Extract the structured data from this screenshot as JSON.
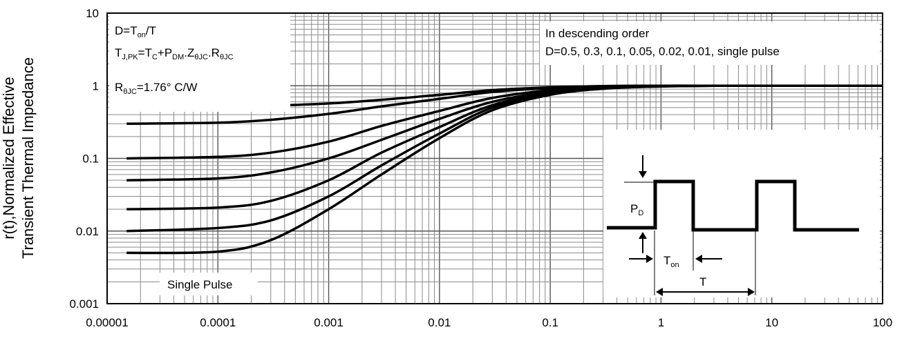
{
  "chart_data": {
    "type": "line",
    "title": "",
    "xlabel": "",
    "ylabel_lines": [
      "r(t),Normalized Effective",
      "Transient Thermal Impedance"
    ],
    "x_scale": "log",
    "y_scale": "log",
    "xlim": [
      1e-05,
      100
    ],
    "ylim": [
      0.001,
      10
    ],
    "x_ticks": [
      {
        "value": 1e-05,
        "label": "0.00001"
      },
      {
        "value": 0.0001,
        "label": "0.0001"
      },
      {
        "value": 0.001,
        "label": "0.001"
      },
      {
        "value": 0.01,
        "label": "0.01"
      },
      {
        "value": 0.1,
        "label": "0.1"
      },
      {
        "value": 1,
        "label": "1"
      },
      {
        "value": 10,
        "label": "10"
      },
      {
        "value": 100,
        "label": "100"
      }
    ],
    "y_ticks": [
      {
        "value": 10,
        "label": "10"
      },
      {
        "value": 1,
        "label": "1"
      },
      {
        "value": 0.1,
        "label": "0.1"
      },
      {
        "value": 0.01,
        "label": "0.01"
      },
      {
        "value": 0.001,
        "label": "0.001"
      }
    ],
    "grid": true,
    "x": [
      1.5e-05,
      0.0001,
      0.0003,
      0.001,
      0.003,
      0.01,
      0.03,
      0.1,
      0.3,
      1,
      3,
      10,
      100
    ],
    "series": [
      {
        "values": [
          0.5,
          0.51,
          0.53,
          0.57,
          0.64,
          0.75,
          0.87,
          0.95,
          0.99,
          1,
          1,
          1,
          1
        ]
      },
      {
        "values": [
          0.3,
          0.31,
          0.34,
          0.41,
          0.52,
          0.66,
          0.82,
          0.93,
          0.98,
          1,
          1,
          1,
          1
        ]
      },
      {
        "values": [
          0.1,
          0.105,
          0.12,
          0.17,
          0.28,
          0.45,
          0.68,
          0.87,
          0.96,
          1,
          1,
          1,
          1
        ]
      },
      {
        "values": [
          0.05,
          0.053,
          0.064,
          0.1,
          0.18,
          0.35,
          0.6,
          0.83,
          0.95,
          0.99,
          1,
          1,
          1
        ]
      },
      {
        "values": [
          0.02,
          0.021,
          0.026,
          0.05,
          0.12,
          0.27,
          0.54,
          0.8,
          0.93,
          0.98,
          1,
          1,
          1
        ]
      },
      {
        "values": [
          0.01,
          0.011,
          0.014,
          0.03,
          0.08,
          0.22,
          0.5,
          0.77,
          0.92,
          0.98,
          1,
          1,
          1
        ]
      },
      {
        "values": [
          0.005,
          0.0052,
          0.0075,
          0.02,
          0.06,
          0.19,
          0.46,
          0.75,
          0.91,
          0.98,
          1,
          1,
          1
        ]
      }
    ],
    "annotations": {
      "formula": {
        "d_main": "D=T",
        "d_sub": "on",
        "d_rest": "/T",
        "t_main": "T",
        "t_sub": "J,PK",
        "t_eq": "=T",
        "tc_sub": "C",
        "plus": "+P",
        "pdm_sub": "DM",
        "dot1": ".Z",
        "z_sub": "θJC",
        "dot2": ".R",
        "r_sub": "θJC",
        "r_main": "R",
        "rth_sub": "θJC",
        "r_val": "=1.76° C/W"
      },
      "order_line1": "In descending order",
      "order_line2": "D=0.5, 0.3, 0.1, 0.05, 0.02, 0.01, single pulse",
      "single_pulse": "Single Pulse",
      "inset": {
        "pd_main": "P",
        "pd_sub": "D",
        "ton_main": "T",
        "ton_sub": "on",
        "t_label": "T"
      }
    }
  }
}
